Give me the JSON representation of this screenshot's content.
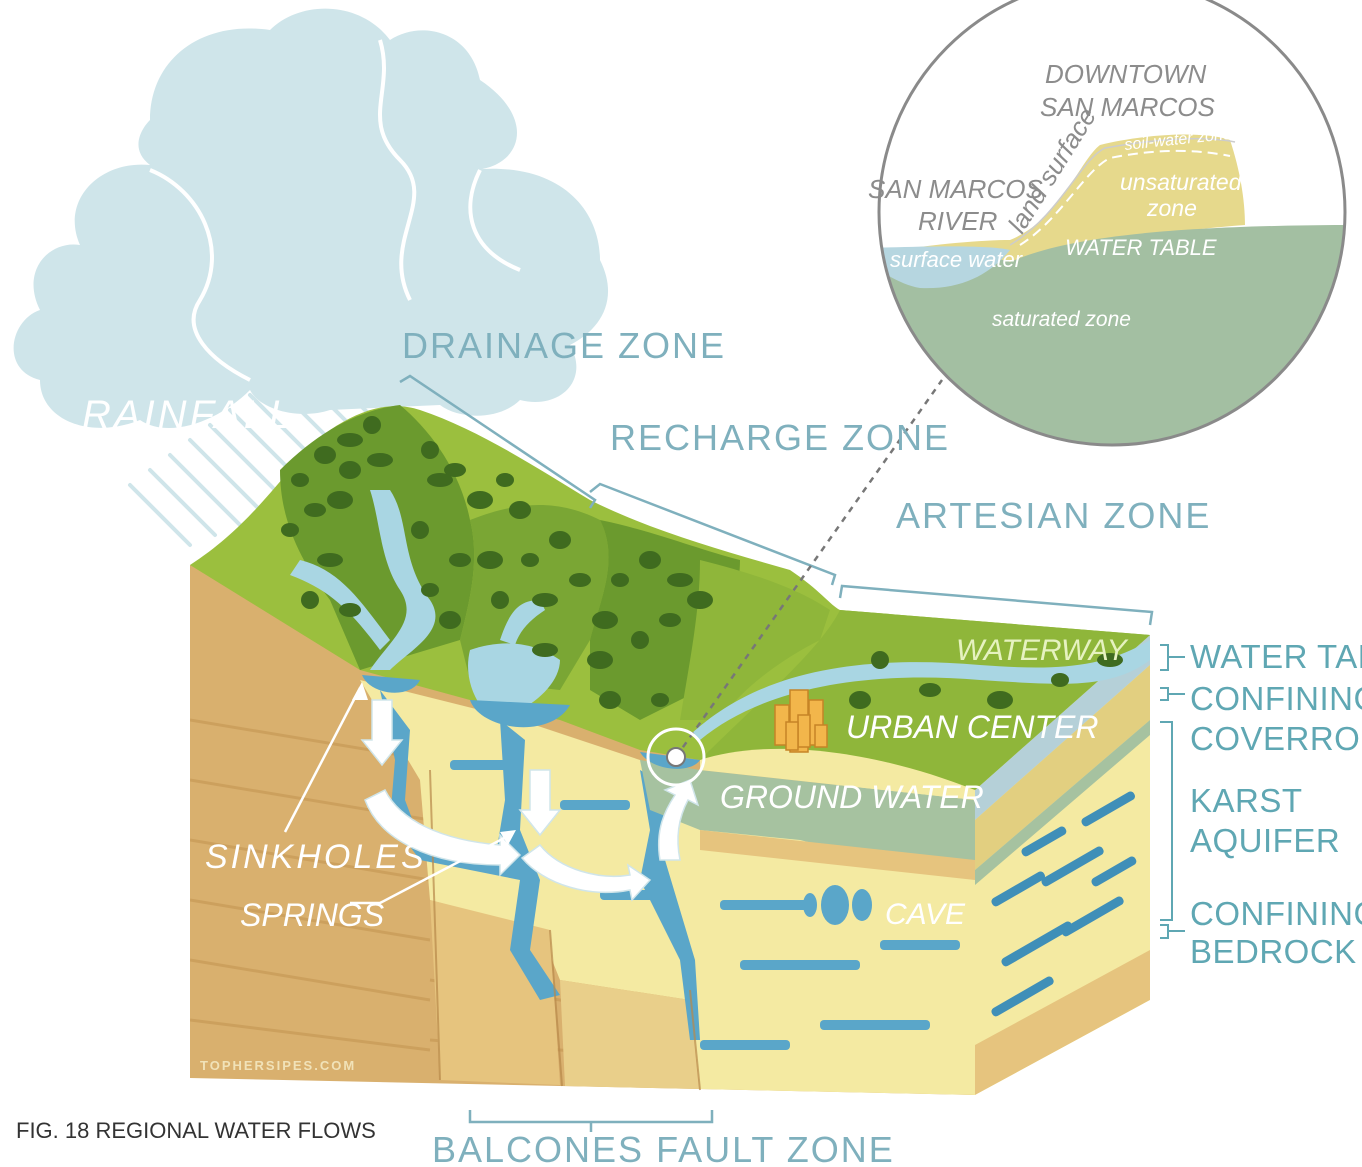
{
  "zone_labels": {
    "drainage": "DRAINAGE ZONE",
    "recharge": "RECHARGE ZONE",
    "artesian": "ARTESIAN ZONE",
    "balcones": "BALCONES FAULT ZONE"
  },
  "side_labels": {
    "water_table": "WATER TABLE",
    "confining_coverrock_1": "CONFINING",
    "confining_coverrock_2": "COVERROCK",
    "karst_aquifer_1": "KARST",
    "karst_aquifer_2": "AQUIFER",
    "confining_bedrock_1": "CONFINING",
    "confining_bedrock_2": "BEDROCK"
  },
  "diagram_labels": {
    "rainfall": "RAINFALL",
    "waterway": "WATERWAY",
    "urban_center": "URBAN CENTER",
    "ground_water": "GROUND WATER",
    "sinkholes": "SINKHOLES",
    "springs": "SPRINGS",
    "cave": "CAVE"
  },
  "inset": {
    "downtown_1": "DOWNTOWN",
    "downtown_2": "SAN MARCOS",
    "river_1": "SAN MARCOS",
    "river_2": "RIVER",
    "land_surface": "land surface",
    "soil_water_zone": "soil-water zone",
    "unsaturated_1": "unsaturated",
    "unsaturated_2": "zone",
    "surface_water": "surface water",
    "water_table": "WATER TABLE",
    "saturated_zone": "saturated zone"
  },
  "credit": "TOPHERSIPES.COM",
  "caption": "FIG. 18 REGIONAL WATER FLOWS",
  "colors": {
    "cloud": "#cfe5ea",
    "zone_text": "#7fb0bd",
    "side_text": "#5fa7b3",
    "grass_dark": "#6b9a2e",
    "grass_light": "#9bbf3e",
    "tree": "#3f6b1f",
    "water": "#a9d6e3",
    "water_deep": "#5aa6c9",
    "sand": "#d9b06e",
    "limestone": "#f4eaa2",
    "groundwater": "#a6c2a0",
    "inset_unsat": "#e6d98c",
    "inset_sat": "#a3bfa2"
  }
}
